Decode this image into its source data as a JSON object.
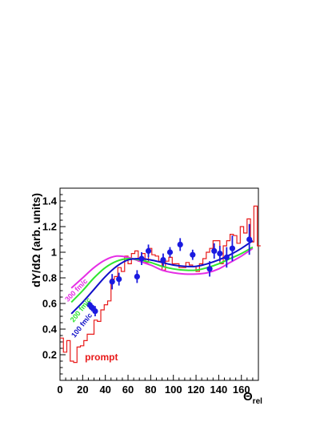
{
  "chart_data": {
    "type": "scatter",
    "xlabel": "Θ",
    "xlabel_subscript": "rel",
    "ylabel": "dY/dΩ (arb. units)",
    "xlim": [
      0,
      175
    ],
    "ylim": [
      0,
      1.5
    ],
    "x_ticks": [
      0,
      20,
      40,
      60,
      80,
      100,
      120,
      140,
      160
    ],
    "y_ticks": [
      0.2,
      0.4,
      0.6,
      0.8,
      1,
      1.2,
      1.4
    ],
    "grid": false,
    "colors": {
      "data": "#1a1ae0",
      "histogram": "#e81a1a",
      "curve_100": "#1010c8",
      "curve_200": "#2ee52e",
      "curve_300": "#e52ee5"
    },
    "data_points": {
      "x": [
        26,
        28,
        31,
        46,
        52,
        68,
        72,
        78,
        91,
        97,
        106,
        117,
        132,
        136,
        141,
        147,
        152,
        167
      ],
      "y": [
        0.59,
        0.57,
        0.54,
        0.77,
        0.79,
        0.81,
        0.95,
        1.01,
        0.94,
        1.0,
        1.06,
        0.98,
        0.87,
        1.01,
        0.99,
        0.96,
        1.03,
        1.1
      ],
      "err": [
        0.03,
        0.03,
        0.04,
        0.06,
        0.05,
        0.05,
        0.05,
        0.05,
        0.05,
        0.04,
        0.05,
        0.04,
        0.06,
        0.06,
        0.06,
        0.08,
        0.1,
        0.12
      ]
    },
    "histogram": {
      "name": "prompt",
      "bin_width": 3,
      "x_start": 0,
      "values": [
        0.33,
        0.22,
        0.31,
        0.15,
        0.14,
        0.26,
        0.27,
        0.31,
        0.36,
        0.36,
        0.47,
        0.46,
        0.55,
        0.59,
        0.62,
        0.79,
        0.81,
        0.88,
        0.85,
        0.97,
        0.91,
        0.99,
        1.01,
        0.93,
        0.99,
        0.92,
        1.03,
        0.98,
        0.97,
        0.93,
        0.86,
        0.93,
        0.96,
        0.91,
        0.91,
        0.88,
        0.88,
        0.92,
        0.9,
        0.89,
        0.85,
        0.91,
        0.95,
        1.0,
        1.03,
        1.09,
        1.09,
        0.91,
        1.05,
        1.09,
        1.14,
        1.13,
        1.07,
        1.2,
        1.15,
        1.26,
        1.08,
        1.36,
        1.05
      ]
    },
    "curves": [
      {
        "name": "300 fm/c",
        "x": [
          10,
          20,
          30,
          40,
          50,
          60,
          70,
          80,
          90,
          100,
          110,
          120,
          130,
          140,
          150,
          160,
          170
        ],
        "y": [
          0.72,
          0.8,
          0.88,
          0.94,
          0.97,
          0.96,
          0.93,
          0.9,
          0.86,
          0.84,
          0.83,
          0.83,
          0.84,
          0.87,
          0.92,
          0.97,
          1.03
        ]
      },
      {
        "name": "200 fm/c",
        "x": [
          10,
          20,
          30,
          40,
          50,
          60,
          70,
          80,
          90,
          100,
          110,
          120,
          130,
          140,
          150,
          160,
          170
        ],
        "y": [
          0.61,
          0.7,
          0.8,
          0.88,
          0.93,
          0.95,
          0.94,
          0.92,
          0.89,
          0.87,
          0.86,
          0.86,
          0.88,
          0.91,
          0.95,
          0.99,
          1.04
        ]
      },
      {
        "name": "100 fm/c",
        "x": [
          10,
          20,
          30,
          40,
          50,
          60,
          70,
          80,
          90,
          100,
          110,
          120,
          130,
          140,
          150,
          160,
          170
        ],
        "y": [
          0.52,
          0.61,
          0.71,
          0.81,
          0.89,
          0.94,
          0.95,
          0.94,
          0.92,
          0.9,
          0.89,
          0.89,
          0.91,
          0.94,
          0.98,
          1.03,
          1.09
        ]
      }
    ]
  }
}
